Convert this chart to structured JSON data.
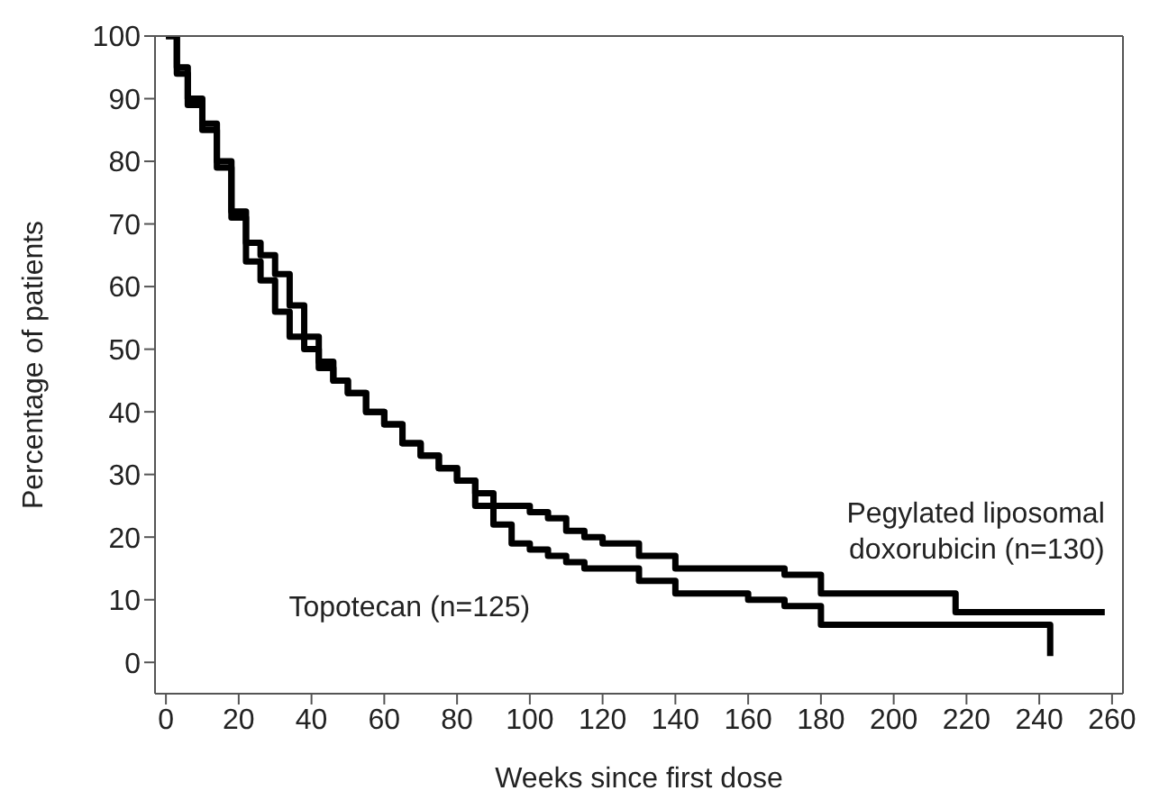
{
  "chart_data": {
    "type": "step",
    "xlabel": "Weeks since first dose",
    "ylabel": "Percentage of patients",
    "xlim": [
      -3,
      263
    ],
    "ylim": [
      -5,
      100
    ],
    "xticks": [
      0,
      20,
      40,
      60,
      80,
      100,
      120,
      140,
      160,
      180,
      200,
      220,
      240,
      260
    ],
    "yticks": [
      0,
      10,
      20,
      30,
      40,
      50,
      60,
      70,
      80,
      90,
      100
    ],
    "marker": "none",
    "line_style": "solid",
    "series": [
      {
        "name": "Pegylated liposomal doxorubicin (n=130)",
        "color": "#000000",
        "x": [
          0,
          3,
          6,
          10,
          14,
          18,
          22,
          26,
          30,
          34,
          38,
          42,
          46,
          50,
          55,
          60,
          65,
          70,
          75,
          80,
          85,
          90,
          95,
          100,
          105,
          110,
          115,
          120,
          130,
          140,
          150,
          160,
          170,
          180,
          190,
          200,
          217,
          230,
          258
        ],
        "values": [
          100,
          95,
          90,
          86,
          80,
          72,
          67,
          65,
          62,
          57,
          52,
          48,
          45,
          43,
          40,
          38,
          35,
          33,
          31,
          29,
          27,
          25,
          25,
          24,
          23,
          21,
          20,
          19,
          17,
          15,
          15,
          15,
          14,
          11,
          11,
          11,
          8,
          8,
          8
        ]
      },
      {
        "name": "Topotecan (n=125)",
        "color": "#000000",
        "x": [
          0,
          3,
          6,
          10,
          14,
          18,
          22,
          26,
          30,
          34,
          38,
          42,
          46,
          50,
          55,
          60,
          65,
          70,
          75,
          80,
          85,
          90,
          95,
          100,
          105,
          110,
          115,
          120,
          130,
          140,
          150,
          160,
          170,
          180,
          200,
          220,
          243
        ],
        "values": [
          100,
          94,
          89,
          85,
          79,
          71,
          64,
          61,
          56,
          52,
          50,
          47,
          45,
          43,
          40,
          38,
          35,
          33,
          31,
          29,
          25,
          22,
          19,
          18,
          17,
          16,
          15,
          15,
          13,
          11,
          11,
          10,
          9,
          6,
          6,
          6,
          1
        ]
      }
    ]
  }
}
